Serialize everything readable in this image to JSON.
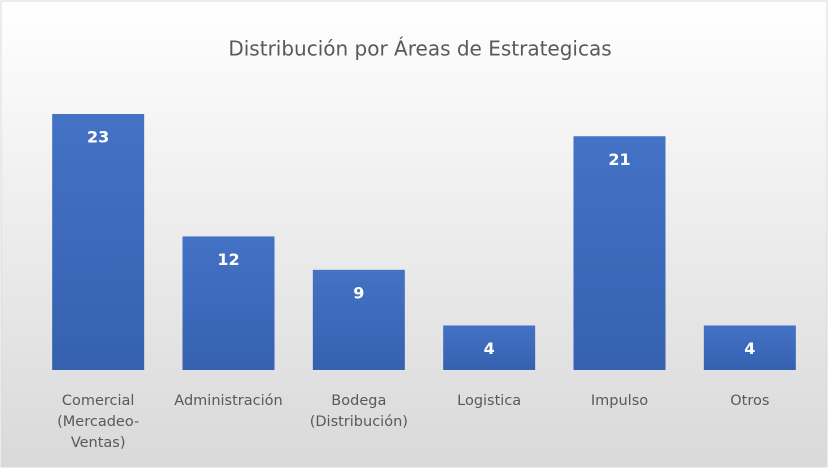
{
  "chart_data": {
    "type": "bar",
    "title": "Distribución por Áreas de Estrategicas",
    "categories": [
      "Comercial (Mercadeo-Ventas)",
      "Administración",
      "Bodega (Distribución)",
      "Logistica",
      "Impulso",
      "Otros"
    ],
    "values": [
      23,
      12,
      9,
      4,
      21,
      4
    ],
    "color": "#4472c4"
  }
}
